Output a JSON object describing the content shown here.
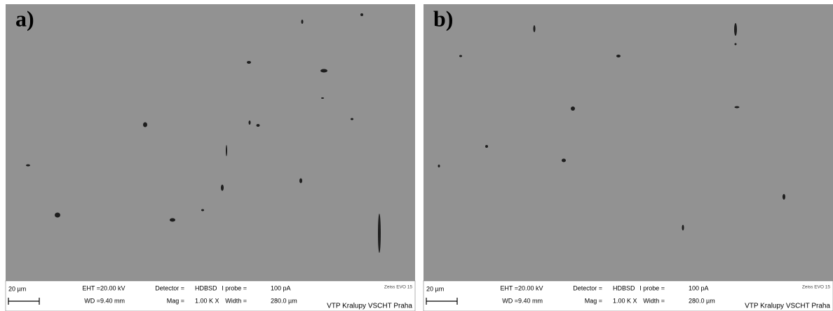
{
  "panels": [
    {
      "label": "a)",
      "scale_bar": "20 µm",
      "fields": [
        {
          "label": "EHT =",
          "value": "20.00 kV"
        },
        {
          "label": "Detector =",
          "value": "HDBSD"
        },
        {
          "label": "I probe =",
          "value": "100 pA"
        },
        {
          "label": "WD =",
          "value": "9.40 mm"
        },
        {
          "label": "Mag =",
          "value": "1.00 K X"
        },
        {
          "label": "Width =",
          "value": "280.0 µm"
        }
      ],
      "instrument": "Zeiss EVO 15",
      "institution": "VTP Kralupy  VSCHT Praha"
    },
    {
      "label": "b)",
      "scale_bar": "20 µm",
      "fields": [
        {
          "label": "EHT =",
          "value": "20.00 kV"
        },
        {
          "label": "Detector =",
          "value": "HDBSD"
        },
        {
          "label": "I probe =",
          "value": "100 pA"
        },
        {
          "label": "WD =",
          "value": "9.40 mm"
        },
        {
          "label": "Mag =",
          "value": "1.00 K X"
        },
        {
          "label": "Width =",
          "value": "280.0 µm"
        }
      ],
      "instrument": "Zeiss EVO 15",
      "institution": "VTP Kralupy  VSCHT Praha"
    }
  ]
}
